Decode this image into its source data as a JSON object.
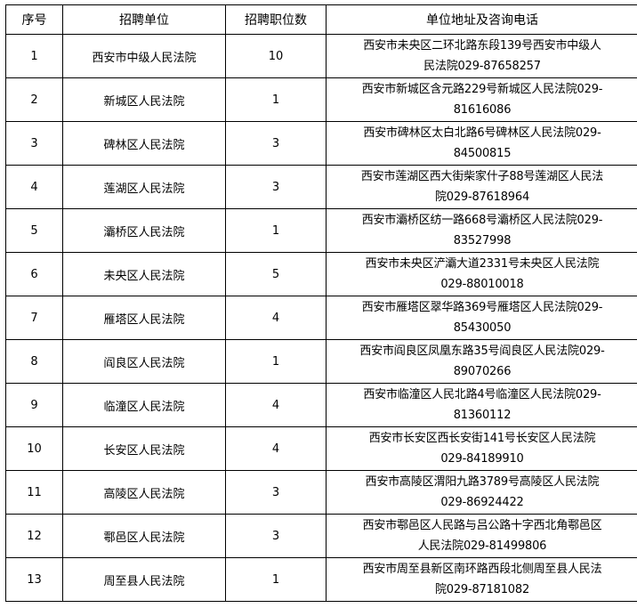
{
  "headers": [
    "序号",
    "招聘单位",
    "招聘职位数",
    "单位地址及咨询电话"
  ],
  "rows": [
    {
      "no": "1",
      "unit": "西安市中级人民法院",
      "positions": "10",
      "address": [
        "西安市未央区二环北路东段139号西安市中级人",
        "民法院029-87658257"
      ]
    },
    {
      "no": "2",
      "unit": "新城区人民法院",
      "positions": "1",
      "address": [
        "西安市新城区含元路229号新城区人民法院029-",
        "81616086"
      ]
    },
    {
      "no": "3",
      "unit": "碑林区人民法院",
      "positions": "3",
      "address": [
        "西安市碑林区太白北路6号碑林区人民法院029-",
        "84500815"
      ]
    },
    {
      "no": "4",
      "unit": "莲湖区人民法院",
      "positions": "3",
      "address": [
        "西安市莲湖区西大街柴家什子88号莲湖区人民法",
        "院029-87618964"
      ]
    },
    {
      "no": "5",
      "unit": "灞桥区人民法院",
      "positions": "1",
      "address": [
        "西安市灞桥区纺一路668号灞桥区人民法院029-",
        "83527998"
      ]
    },
    {
      "no": "6",
      "unit": "未央区人民法院",
      "positions": "5",
      "address": [
        "西安市未央区浐灞大道2331号未央区人民法院",
        "029-88010018"
      ]
    },
    {
      "no": "7",
      "unit": "雁塔区人民法院",
      "positions": "4",
      "address": [
        "西安市雁塔区翠华路369号雁塔区人民法院029-",
        "85430050"
      ]
    },
    {
      "no": "8",
      "unit": "阎良区人民法院",
      "positions": "1",
      "address": [
        "西安市阎良区凤凰东路35号阎良区人民法院029-",
        "89070266"
      ]
    },
    {
      "no": "9",
      "unit": "临潼区人民法院",
      "positions": "4",
      "address": [
        "西安市临潼区人民北路4号临潼区人民法院029-",
        "81360112"
      ]
    },
    {
      "no": "10",
      "unit": "长安区人民法院",
      "positions": "4",
      "address": [
        "西安市长安区西长安街141号长安区人民法院",
        "029-84189910"
      ]
    },
    {
      "no": "11",
      "unit": "高陵区人民法院",
      "positions": "3",
      "address": [
        "西安市高陵区渭阳九路3789号高陵区人民法院",
        "029-86924422"
      ]
    },
    {
      "no": "12",
      "unit": "鄠邑区人民法院",
      "positions": "3",
      "address": [
        "西安市鄠邑区人民路与吕公路十字西北角鄠邑区",
        "人民法院029-81499806"
      ]
    },
    {
      "no": "13",
      "unit": "周至县人民法院",
      "positions": "1",
      "address": [
        "西安市周至县新区南环路西段北侧周至县人民法",
        "院029-87181082"
      ]
    }
  ]
}
